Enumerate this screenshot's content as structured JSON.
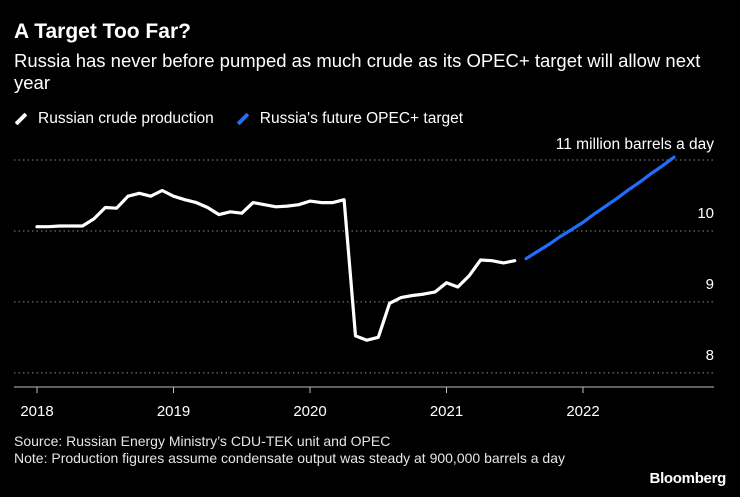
{
  "title": "A Target Too Far?",
  "subtitle": "Russia has never before pumped as much crude as its OPEC+ target will allow next year",
  "source": "Source: Russian Energy Ministry’s CDU-TEK unit and OPEC",
  "note": "Note: Production figures assume condensate output was steady at 900,000 barrels a day",
  "brand": "Bloomberg",
  "colors": {
    "background": "#000000",
    "production": "#ffffff",
    "target": "#1f6fff",
    "grid": "#888888"
  },
  "chart_data": {
    "type": "line",
    "title": "A Target Too Far?",
    "xlabel": "",
    "ylabel": "",
    "xlim": [
      2017.97,
      2022.97
    ],
    "ylim": [
      7.8,
      11.1
    ],
    "yticks": [
      8,
      9,
      10,
      11
    ],
    "ytick_labels": [
      "8",
      "9",
      "10",
      ""
    ],
    "xticks": [
      2018,
      2019,
      2020,
      2021,
      2022
    ],
    "xtick_labels": [
      "2018",
      "2019",
      "2020",
      "2021",
      "2022"
    ],
    "annotation": "11 million barrels a day",
    "grid": "horizontal-dotted",
    "legend_position": "top-left",
    "series": [
      {
        "name": "Russian crude production",
        "color": "#ffffff",
        "x": [
          2018.0,
          2018.083,
          2018.167,
          2018.25,
          2018.333,
          2018.417,
          2018.5,
          2018.583,
          2018.667,
          2018.75,
          2018.833,
          2018.917,
          2019.0,
          2019.083,
          2019.167,
          2019.25,
          2019.333,
          2019.417,
          2019.5,
          2019.583,
          2019.667,
          2019.75,
          2019.833,
          2019.917,
          2020.0,
          2020.083,
          2020.167,
          2020.25,
          2020.333,
          2020.417,
          2020.5,
          2020.583,
          2020.667,
          2020.75,
          2020.833,
          2020.917,
          2021.0,
          2021.083,
          2021.167,
          2021.25,
          2021.333,
          2021.417,
          2021.5
        ],
        "values": [
          10.06,
          10.06,
          10.07,
          10.07,
          10.07,
          10.17,
          10.33,
          10.32,
          10.49,
          10.53,
          10.49,
          10.57,
          10.49,
          10.44,
          10.4,
          10.33,
          10.23,
          10.27,
          10.25,
          10.4,
          10.37,
          10.34,
          10.35,
          10.37,
          10.42,
          10.4,
          10.4,
          10.44,
          8.52,
          8.46,
          8.5,
          8.98,
          9.06,
          9.09,
          9.11,
          9.14,
          9.27,
          9.21,
          9.37,
          9.59,
          9.58,
          9.55,
          9.58
        ]
      },
      {
        "name": "Russia's future OPEC+ target",
        "color": "#1f6fff",
        "x": [
          2021.583,
          2021.667,
          2021.75,
          2021.833,
          2021.917,
          2022.0,
          2022.083,
          2022.167,
          2022.25,
          2022.333,
          2022.417,
          2022.5,
          2022.583,
          2022.667
        ],
        "values": [
          9.61,
          9.71,
          9.81,
          9.92,
          10.02,
          10.12,
          10.24,
          10.35,
          10.46,
          10.58,
          10.69,
          10.81,
          10.92,
          11.04
        ]
      }
    ]
  }
}
